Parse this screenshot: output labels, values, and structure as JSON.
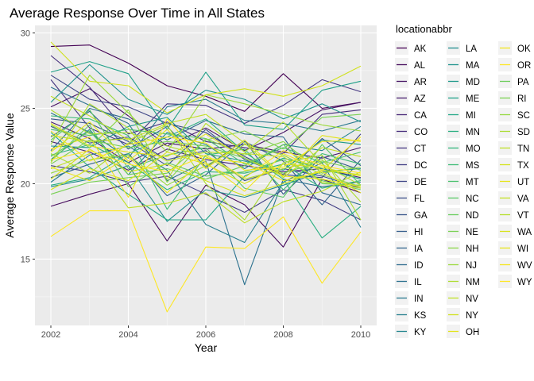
{
  "chart_data": {
    "type": "line",
    "title": "Average Response Over Time in All States",
    "xlabel": "Year",
    "ylabel": "Average Response Value",
    "xlim": [
      2002,
      2010
    ],
    "ylim": [
      10.6,
      30.5
    ],
    "x_ticks": [
      "2002",
      "2004",
      "2006",
      "2008",
      "2010"
    ],
    "y_ticks": [
      "15",
      "20",
      "25",
      "30"
    ],
    "x": [
      2002,
      2003,
      2004,
      2005,
      2006,
      2007,
      2008,
      2009,
      2010
    ],
    "legend_title": "locationabbr",
    "legend_position": "right",
    "colormap": "viridis",
    "series": [
      {
        "name": "AK",
        "color": "#440154",
        "values": [
          29.1,
          29.2,
          28.0,
          26.5,
          25.8,
          24.8,
          27.3,
          25.0,
          25.4
        ]
      },
      {
        "name": "AL",
        "color": "#450a5c",
        "values": [
          18.5,
          19.3,
          20.0,
          16.2,
          19.9,
          18.6,
          15.8,
          20.3,
          19.4
        ]
      },
      {
        "name": "AR",
        "color": "#461465",
        "values": [
          25.1,
          26.3,
          24.5,
          22.5,
          23.7,
          22.2,
          23.4,
          24.9,
          25.4
        ]
      },
      {
        "name": "AZ",
        "color": "#471d6d",
        "values": [
          24.1,
          23.0,
          21.4,
          22.7,
          22.3,
          22.6,
          22.1,
          21.7,
          22.4
        ]
      },
      {
        "name": "CA",
        "color": "#472575",
        "values": [
          22.8,
          22.1,
          20.9,
          22.3,
          21.6,
          21.2,
          20.8,
          21.0,
          20.4
        ]
      },
      {
        "name": "CO",
        "color": "#462d7c",
        "values": [
          28.5,
          26.4,
          23.3,
          24.1,
          22.8,
          22.4,
          22.0,
          24.6,
          24.9
        ]
      },
      {
        "name": "CT",
        "color": "#443581",
        "values": [
          26.9,
          23.7,
          22.6,
          25.3,
          25.2,
          24.0,
          25.2,
          26.9,
          26.1
        ]
      },
      {
        "name": "DC",
        "color": "#413d84",
        "values": [
          21.2,
          20.8,
          20.1,
          20.5,
          19.3,
          18.1,
          19.6,
          18.9,
          17.6
        ]
      },
      {
        "name": "DE",
        "color": "#3e4586",
        "values": [
          27.2,
          25.6,
          25.1,
          24.0,
          23.4,
          21.8,
          20.6,
          20.4,
          23.3
        ]
      },
      {
        "name": "FL",
        "color": "#3b4d88",
        "values": [
          23.8,
          22.7,
          23.1,
          21.6,
          22.2,
          20.2,
          21.0,
          20.5,
          19.7
        ]
      },
      {
        "name": "GA",
        "color": "#38548a",
        "values": [
          24.3,
          24.0,
          22.8,
          21.2,
          23.6,
          21.6,
          20.6,
          23.0,
          21.2
        ]
      },
      {
        "name": "HI",
        "color": "#345c8b",
        "values": [
          23.1,
          24.8,
          22.3,
          23.8,
          21.1,
          22.9,
          19.3,
          21.8,
          20.9
        ]
      },
      {
        "name": "IA",
        "color": "#31648c",
        "values": [
          20.4,
          21.3,
          22.0,
          19.2,
          20.6,
          22.8,
          21.5,
          18.6,
          21.6
        ]
      },
      {
        "name": "ID",
        "color": "#2e6b8e",
        "values": [
          22.2,
          25.0,
          24.3,
          22.9,
          24.2,
          23.3,
          23.1,
          19.4,
          18.6
        ]
      },
      {
        "name": "IL",
        "color": "#2b718e",
        "values": [
          26.4,
          25.2,
          24.0,
          20.2,
          21.5,
          13.3,
          20.3,
          19.8,
          20.1
        ]
      },
      {
        "name": "IN",
        "color": "#28788e",
        "values": [
          24.7,
          23.4,
          21.7,
          25.1,
          25.6,
          24.2,
          24.0,
          23.5,
          24.2
        ]
      },
      {
        "name": "KS",
        "color": "#267f8e",
        "values": [
          20.1,
          21.9,
          22.5,
          20.9,
          17.3,
          16.1,
          20.1,
          21.4,
          17.1
        ]
      },
      {
        "name": "KY",
        "color": "#23858e",
        "values": [
          21.6,
          23.6,
          20.6,
          23.4,
          22.6,
          21.0,
          22.6,
          22.2,
          23.8
        ]
      },
      {
        "name": "LA",
        "color": "#218c8d",
        "values": [
          19.8,
          20.3,
          21.2,
          17.5,
          19.6,
          19.1,
          19.9,
          20.8,
          21.0
        ]
      },
      {
        "name": "MA",
        "color": "#1f928c",
        "values": [
          25.4,
          27.9,
          25.6,
          24.6,
          26.2,
          25.6,
          24.3,
          25.3,
          24.1
        ]
      },
      {
        "name": "MD",
        "color": "#1e998a",
        "values": [
          22.5,
          22.4,
          23.8,
          24.4,
          22.0,
          21.5,
          20.9,
          22.9,
          22.6
        ]
      },
      {
        "name": "ME",
        "color": "#1fa088",
        "values": [
          27.4,
          28.1,
          27.3,
          23.6,
          27.4,
          23.9,
          23.6,
          26.2,
          26.8
        ]
      },
      {
        "name": "MI",
        "color": "#22a785",
        "values": [
          23.4,
          21.1,
          19.3,
          17.6,
          17.6,
          20.5,
          21.7,
          21.0,
          20.3
        ]
      },
      {
        "name": "MN",
        "color": "#28ae80",
        "values": [
          19.9,
          20.4,
          22.0,
          23.1,
          24.3,
          22.1,
          20.3,
          16.4,
          18.5
        ]
      },
      {
        "name": "MO",
        "color": "#31b57b",
        "values": [
          21.9,
          22.6,
          21.4,
          19.6,
          20.8,
          20.7,
          21.3,
          19.7,
          20.2
        ]
      },
      {
        "name": "MS",
        "color": "#3cbb75",
        "values": [
          24.5,
          24.3,
          23.2,
          18.3,
          21.9,
          22.3,
          19.6,
          22.0,
          21.3
        ]
      },
      {
        "name": "MT",
        "color": "#49c16d",
        "values": [
          23.6,
          23.2,
          23.6,
          23.3,
          23.0,
          21.3,
          22.4,
          21.4,
          22.1
        ]
      },
      {
        "name": "NC",
        "color": "#58c765",
        "values": [
          22.9,
          24.9,
          21.0,
          21.9,
          22.4,
          19.7,
          19.1,
          22.6,
          19.9
        ]
      },
      {
        "name": "ND",
        "color": "#67cc5c",
        "values": [
          21.5,
          23.9,
          19.8,
          21.4,
          20.5,
          20.8,
          21.6,
          20.2,
          19.6
        ]
      },
      {
        "name": "NE",
        "color": "#78d152",
        "values": [
          19.3,
          20.1,
          20.4,
          20.7,
          22.9,
          23.5,
          22.3,
          24.4,
          24.6
        ]
      },
      {
        "name": "NH",
        "color": "#89d548",
        "values": [
          23.9,
          22.4,
          24.9,
          20.1,
          23.0,
          21.9,
          22.8,
          20.7,
          21.1
        ]
      },
      {
        "name": "NJ",
        "color": "#9bd93c",
        "values": [
          22.6,
          27.2,
          24.7,
          22.1,
          25.9,
          25.3,
          24.6,
          23.9,
          23.5
        ]
      },
      {
        "name": "NM",
        "color": "#addc30",
        "values": [
          24.9,
          23.3,
          23.4,
          22.5,
          21.8,
          20.3,
          21.0,
          21.6,
          18.8
        ]
      },
      {
        "name": "NV",
        "color": "#bfdf25",
        "values": [
          21.0,
          22.0,
          18.4,
          18.7,
          19.4,
          17.4,
          18.8,
          19.5,
          20.8
        ]
      },
      {
        "name": "NY",
        "color": "#d0e11c",
        "values": [
          29.4,
          26.8,
          26.5,
          24.7,
          25.9,
          26.3,
          25.8,
          26.5,
          27.8
        ]
      },
      {
        "name": "OH",
        "color": "#e1e318",
        "values": [
          24.0,
          22.5,
          22.1,
          21.8,
          23.3,
          21.7,
          20.5,
          23.2,
          22.8
        ]
      },
      {
        "name": "OK",
        "color": "#f1e51d",
        "values": [
          22.3,
          23.1,
          19.1,
          24.3,
          21.4,
          19.5,
          22.0,
          20.9,
          23.1
        ]
      },
      {
        "name": "OR",
        "color": "#fde725",
        "values": [
          16.5,
          18.2,
          18.2,
          11.5,
          15.8,
          15.7,
          17.8,
          13.4,
          16.8
        ]
      },
      {
        "name": "PA",
        "color": "#6ccd5a",
        "values": [
          21.8,
          23.5,
          20.6,
          21.0,
          20.3,
          21.2,
          22.6,
          20.0,
          19.9
        ]
      },
      {
        "name": "RI",
        "color": "#7ad151",
        "values": [
          21.3,
          22.9,
          22.4,
          22.8,
          22.5,
          21.7,
          20.7,
          21.5,
          20.9
        ]
      },
      {
        "name": "SC",
        "color": "#95d840",
        "values": [
          20.7,
          21.6,
          21.9,
          19.9,
          21.2,
          22.6,
          21.9,
          20.6,
          19.8
        ]
      },
      {
        "name": "SD",
        "color": "#aadc32",
        "values": [
          22.0,
          20.7,
          22.7,
          23.9,
          20.0,
          17.6,
          21.4,
          21.9,
          17.6
        ]
      },
      {
        "name": "TN",
        "color": "#bddf26",
        "values": [
          23.2,
          22.8,
          23.0,
          21.5,
          22.1,
          22.0,
          21.8,
          20.1,
          19.7
        ]
      },
      {
        "name": "TX",
        "color": "#d2e21b",
        "values": [
          20.3,
          22.3,
          20.8,
          21.3,
          20.2,
          19.2,
          20.0,
          20.9,
          20.6
        ]
      },
      {
        "name": "UT",
        "color": "#e5e419",
        "values": [
          22.1,
          24.1,
          21.5,
          23.6,
          21.0,
          22.9,
          20.5,
          20.3,
          19.8
        ]
      },
      {
        "name": "VA",
        "color": "#c2df23",
        "values": [
          25.8,
          24.5,
          22.9,
          24.0,
          24.6,
          22.7,
          20.4,
          22.4,
          21.8
        ]
      },
      {
        "name": "VT",
        "color": "#b5de2b",
        "values": [
          21.4,
          25.3,
          23.7,
          20.3,
          24.0,
          22.1,
          24.1,
          21.3,
          19.9
        ]
      },
      {
        "name": "WA",
        "color": "#d8e219",
        "values": [
          19.6,
          21.0,
          20.2,
          22.1,
          21.3,
          20.0,
          21.3,
          21.1,
          20.5
        ]
      },
      {
        "name": "WI",
        "color": "#e8e419",
        "values": [
          21.1,
          20.2,
          21.8,
          19.4,
          21.7,
          21.4,
          20.2,
          20.8,
          19.4
        ]
      },
      {
        "name": "WV",
        "color": "#f4e61e",
        "values": [
          23.5,
          21.5,
          22.6,
          23.1,
          22.7,
          20.9,
          21.1,
          22.8,
          22.9
        ]
      },
      {
        "name": "WY",
        "color": "#fde725",
        "values": [
          21.6,
          22.2,
          21.3,
          20.8,
          21.9,
          20.4,
          22.2,
          21.2,
          20.7
        ]
      }
    ]
  }
}
